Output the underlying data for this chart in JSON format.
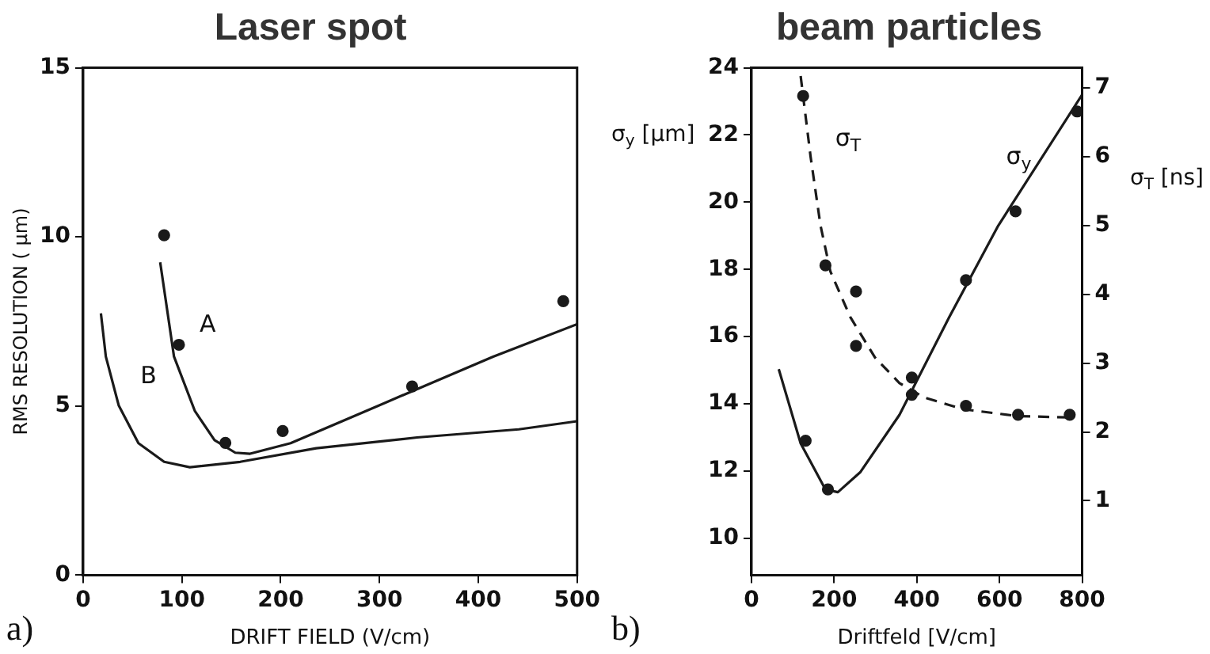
{
  "chart_data": [
    {
      "type": "line",
      "title": "Laser spot",
      "xlabel": "DRIFT FIELD (V/cm)",
      "ylabel": "RMS RESOLUTION ( µm)",
      "xlim": [
        0,
        500
      ],
      "xticks": [
        0,
        100,
        200,
        300,
        400,
        500
      ],
      "ylim": [
        0,
        15
      ],
      "yticks": [
        0,
        5,
        10,
        15
      ],
      "grid": false,
      "legend": false,
      "series": [
        {
          "name": "A",
          "color": "#1a1a1a",
          "marker": "none",
          "x": [
            78,
            92,
            113,
            133,
            154,
            169,
            210,
            287,
            338,
            415,
            500
          ],
          "values": [
            9.25,
            6.46,
            4.86,
            3.99,
            3.62,
            3.59,
            3.9,
            4.86,
            5.5,
            6.46,
            7.42
          ]
        },
        {
          "name": "B",
          "color": "#1a1a1a",
          "marker": "none",
          "x": [
            18,
            23,
            36,
            56,
            82,
            108,
            159,
            236,
            338,
            441,
            500
          ],
          "values": [
            7.74,
            6.46,
            5.02,
            3.9,
            3.35,
            3.19,
            3.35,
            3.75,
            4.07,
            4.31,
            4.55
          ]
        },
        {
          "type": "scatter",
          "color": "#1a1a1a",
          "marker": "circle",
          "x": [
            82,
            97,
            144,
            202,
            333,
            486
          ],
          "values": [
            10.05,
            6.81,
            3.91,
            4.26,
            5.58,
            8.1
          ]
        }
      ],
      "annotations": [
        "a)"
      ]
    },
    {
      "type": "line",
      "title": "beam particles",
      "xlabel": "Driftfeld [V/cm]",
      "ylabel": "σ$_{y}$ [µm]",
      "y2label": "σ$_{T}$ [ns]",
      "xlim": [
        0,
        800
      ],
      "xticks": [
        0,
        200,
        400,
        600,
        800
      ],
      "ylim": [
        8.9,
        24
      ],
      "yticks": [
        10,
        12,
        14,
        16,
        18,
        20,
        22,
        24
      ],
      "y2lim": [
        -0.08,
        7.29
      ],
      "y2ticks": [
        1,
        2,
        3,
        4,
        5,
        6,
        7
      ],
      "grid": false,
      "legend": false,
      "series": [
        {
          "name": "σ$_{y}$",
          "color": "#1a1a1a",
          "marker": "none",
          "line_style": "solid",
          "x": [
            66,
            119,
            179,
            209,
            263,
            358,
            478,
            597,
            800
          ],
          "values": [
            15.03,
            12.82,
            11.45,
            11.37,
            11.96,
            13.67,
            16.57,
            19.3,
            23.2
          ]
        },
        {
          "type": "scatter",
          "color": "#1a1a1a",
          "marker": "circle",
          "x": [
            131,
            185,
            388,
            519,
            639,
            788
          ],
          "values": [
            12.9,
            11.45,
            14.78,
            17.68,
            19.73,
            22.7
          ]
        },
        {
          "name": "σ$_{T}$",
          "axis": "y2",
          "color": "#1a1a1a",
          "marker": "none",
          "line_style": "dashed",
          "x": [
            119,
            143,
            167,
            191,
            239,
            299,
            358,
            418,
            513,
            645,
            776
          ],
          "values": [
            7.17,
            6.0,
            5.0,
            4.33,
            3.67,
            3.08,
            2.71,
            2.5,
            2.33,
            2.23,
            2.21
          ]
        },
        {
          "type": "scatter",
          "axis": "y2",
          "color": "#1a1a1a",
          "marker": "circle",
          "x": [
            125,
            179,
            253,
            253,
            388,
            519,
            645,
            770
          ],
          "values": [
            6.88,
            4.42,
            4.04,
            3.25,
            2.54,
            2.38,
            2.25,
            2.25
          ]
        }
      ],
      "annotations": [
        "b)"
      ]
    }
  ]
}
